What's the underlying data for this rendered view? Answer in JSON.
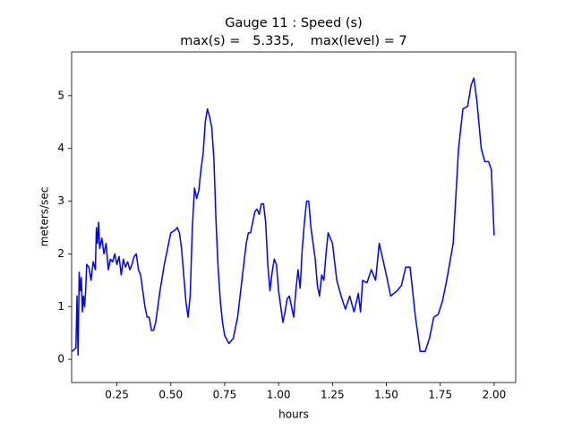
{
  "chart_data": {
    "type": "line",
    "title": "Gauge 11 : Speed (s)",
    "subtitle": "max(s) =   5.335,    max(level) = 7",
    "xlabel": "hours",
    "ylabel": "meters/sec",
    "xlim": [
      0.04,
      2.1
    ],
    "ylim": [
      -0.44,
      5.83
    ],
    "xticks": [
      0.25,
      {
        "value": 0.5,
        "label": "0.50"
      },
      0.75,
      {
        "value": 1.0,
        "label": "1.00"
      },
      1.25,
      {
        "value": 1.5,
        "label": "1.50"
      },
      1.75,
      {
        "value": 2.0,
        "label": "2.00"
      }
    ],
    "yticks": [
      0,
      1,
      2,
      3,
      4,
      5
    ],
    "grid": false,
    "x": [
      0.042,
      0.05,
      0.06,
      0.065,
      0.07,
      0.075,
      0.08,
      0.085,
      0.09,
      0.095,
      0.1,
      0.105,
      0.11,
      0.12,
      0.13,
      0.14,
      0.15,
      0.155,
      0.16,
      0.165,
      0.17,
      0.18,
      0.19,
      0.2,
      0.21,
      0.22,
      0.23,
      0.24,
      0.25,
      0.26,
      0.27,
      0.28,
      0.29,
      0.3,
      0.31,
      0.32,
      0.33,
      0.34,
      0.35,
      0.36,
      0.37,
      0.38,
      0.39,
      0.4,
      0.41,
      0.42,
      0.43,
      0.45,
      0.47,
      0.49,
      0.5,
      0.52,
      0.53,
      0.54,
      0.55,
      0.56,
      0.57,
      0.58,
      0.59,
      0.6,
      0.61,
      0.62,
      0.63,
      0.64,
      0.65,
      0.66,
      0.67,
      0.68,
      0.69,
      0.7,
      0.71,
      0.72,
      0.73,
      0.74,
      0.75,
      0.77,
      0.79,
      0.81,
      0.83,
      0.85,
      0.86,
      0.87,
      0.88,
      0.89,
      0.9,
      0.91,
      0.92,
      0.93,
      0.94,
      0.95,
      0.96,
      0.97,
      0.98,
      0.99,
      1.0,
      1.01,
      1.02,
      1.03,
      1.04,
      1.05,
      1.06,
      1.07,
      1.08,
      1.09,
      1.1,
      1.11,
      1.12,
      1.13,
      1.14,
      1.15,
      1.16,
      1.17,
      1.18,
      1.19,
      1.2,
      1.21,
      1.22,
      1.23,
      1.24,
      1.25,
      1.27,
      1.29,
      1.31,
      1.33,
      1.35,
      1.37,
      1.38,
      1.39,
      1.41,
      1.43,
      1.45,
      1.467,
      1.5,
      1.52,
      1.55,
      1.57,
      1.59,
      1.61,
      1.635,
      1.657,
      1.68,
      1.7,
      1.72,
      1.74,
      1.76,
      1.78,
      1.81,
      1.835,
      1.855,
      1.877,
      1.893,
      1.906,
      1.92,
      1.94,
      1.957,
      1.974,
      1.987,
      2.0
    ],
    "series": [
      {
        "name": "speed",
        "color": "#0000ff",
        "values": [
          0.15,
          0.18,
          0.22,
          1.2,
          0.08,
          1.65,
          1.3,
          1.55,
          0.9,
          1.2,
          1.0,
          1.3,
          1.8,
          1.75,
          1.5,
          1.85,
          1.7,
          2.5,
          2.2,
          2.6,
          2.1,
          2.3,
          2.0,
          2.2,
          1.7,
          1.9,
          1.85,
          2.0,
          1.8,
          1.95,
          1.6,
          1.9,
          1.75,
          1.85,
          1.7,
          1.8,
          1.95,
          2.0,
          1.7,
          1.6,
          1.3,
          1.0,
          0.8,
          0.8,
          0.55,
          0.55,
          0.7,
          1.3,
          1.8,
          2.2,
          2.4,
          2.45,
          2.5,
          2.4,
          2.1,
          1.6,
          1.1,
          0.8,
          1.2,
          2.5,
          3.25,
          3.05,
          3.2,
          3.6,
          3.9,
          4.5,
          4.75,
          4.6,
          4.4,
          3.8,
          2.6,
          1.7,
          1.1,
          0.7,
          0.45,
          0.3,
          0.4,
          0.8,
          1.5,
          2.2,
          2.4,
          2.4,
          2.6,
          2.8,
          2.85,
          2.75,
          2.95,
          2.95,
          2.6,
          1.8,
          1.3,
          1.65,
          1.9,
          1.8,
          1.3,
          1.0,
          0.7,
          0.9,
          1.15,
          1.2,
          1.0,
          0.8,
          1.3,
          1.7,
          1.35,
          2.1,
          2.6,
          3.0,
          3.0,
          2.5,
          2.2,
          1.9,
          1.4,
          1.2,
          1.6,
          1.5,
          2.0,
          2.4,
          2.3,
          2.2,
          1.5,
          1.2,
          0.95,
          1.2,
          0.9,
          1.25,
          0.9,
          1.5,
          1.45,
          1.7,
          1.5,
          2.2,
          1.6,
          1.2,
          1.3,
          1.4,
          1.75,
          1.75,
          0.8,
          0.15,
          0.15,
          0.4,
          0.8,
          0.85,
          1.1,
          1.5,
          2.2,
          4.0,
          4.75,
          4.8,
          5.2,
          5.335,
          4.9,
          4.0,
          3.75,
          3.75,
          3.6,
          2.35
        ]
      }
    ]
  }
}
